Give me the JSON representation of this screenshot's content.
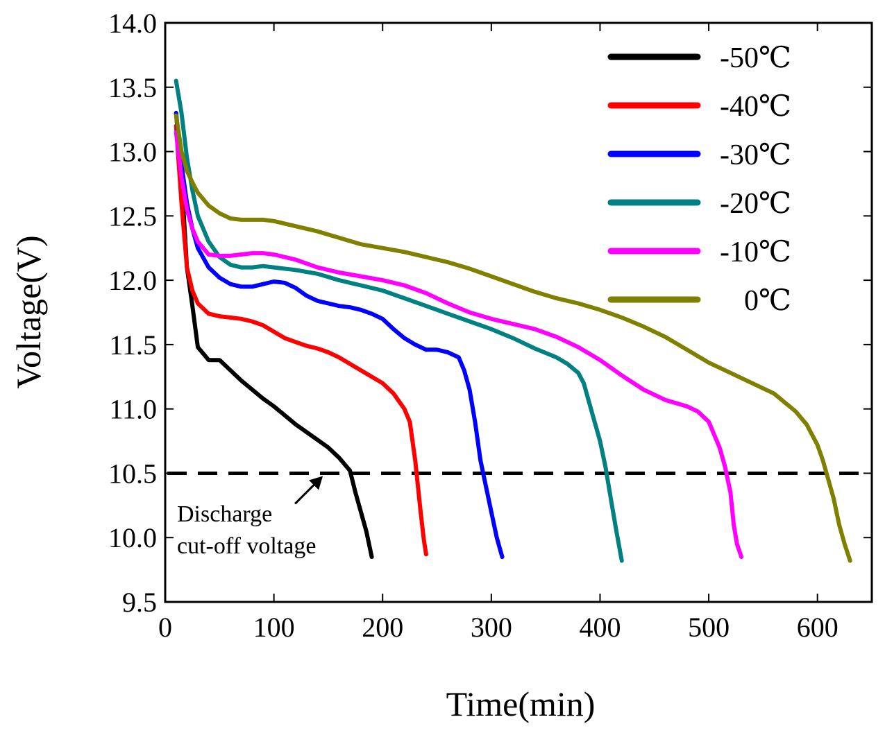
{
  "chart_data": {
    "type": "line",
    "title": "",
    "xlabel": "Time(min)",
    "ylabel": "Voltage(V)",
    "xlim": [
      0,
      650
    ],
    "ylim": [
      9.5,
      14.0
    ],
    "xticks": [
      "0",
      "100",
      "200",
      "300",
      "400",
      "500",
      "600"
    ],
    "yticks": [
      "9.5",
      "10.0",
      "10.5",
      "11.0",
      "11.5",
      "12.0",
      "12.5",
      "13.0",
      "13.5",
      "14.0"
    ],
    "legend_position": "top-right",
    "series": [
      {
        "name": "-50℃",
        "color": "#000000",
        "x": [
          10,
          15,
          20,
          25,
          30,
          40,
          50,
          60,
          70,
          80,
          90,
          100,
          110,
          120,
          130,
          140,
          150,
          160,
          170,
          175,
          180,
          185,
          190
        ],
        "y": [
          13.3,
          12.8,
          12.1,
          11.8,
          11.48,
          11.38,
          11.38,
          11.3,
          11.22,
          11.15,
          11.08,
          11.02,
          10.95,
          10.88,
          10.82,
          10.76,
          10.7,
          10.62,
          10.52,
          10.35,
          10.2,
          10.05,
          9.85
        ]
      },
      {
        "name": "-40℃",
        "color": "#ff0000",
        "x": [
          10,
          15,
          20,
          25,
          30,
          40,
          50,
          60,
          70,
          80,
          90,
          100,
          110,
          120,
          130,
          140,
          150,
          160,
          170,
          180,
          190,
          200,
          210,
          220,
          225,
          230,
          235,
          238,
          240
        ],
        "y": [
          13.2,
          12.6,
          12.1,
          11.92,
          11.82,
          11.74,
          11.72,
          11.71,
          11.7,
          11.68,
          11.65,
          11.6,
          11.55,
          11.52,
          11.49,
          11.47,
          11.44,
          11.4,
          11.35,
          11.3,
          11.25,
          11.2,
          11.12,
          11.0,
          10.9,
          10.6,
          10.2,
          9.98,
          9.87
        ]
      },
      {
        "name": "-30℃",
        "color": "#0000ff",
        "x": [
          10,
          15,
          20,
          25,
          30,
          40,
          50,
          60,
          70,
          80,
          90,
          100,
          110,
          120,
          130,
          140,
          150,
          160,
          170,
          180,
          190,
          200,
          210,
          220,
          230,
          240,
          250,
          260,
          270,
          275,
          280,
          285,
          290,
          295,
          300,
          305,
          310
        ],
        "y": [
          13.3,
          12.9,
          12.6,
          12.4,
          12.25,
          12.1,
          12.02,
          11.97,
          11.95,
          11.95,
          11.97,
          11.99,
          11.98,
          11.94,
          11.88,
          11.84,
          11.82,
          11.8,
          11.79,
          11.77,
          11.74,
          11.7,
          11.62,
          11.55,
          11.5,
          11.46,
          11.46,
          11.44,
          11.4,
          11.3,
          11.15,
          10.9,
          10.6,
          10.4,
          10.2,
          10.0,
          9.85
        ]
      },
      {
        "name": "-20℃",
        "color": "#008080",
        "x": [
          10,
          15,
          20,
          25,
          30,
          40,
          50,
          60,
          70,
          80,
          90,
          100,
          120,
          140,
          160,
          180,
          200,
          220,
          240,
          260,
          280,
          300,
          320,
          340,
          360,
          370,
          380,
          385,
          390,
          395,
          400,
          405,
          410,
          415,
          420
        ],
        "y": [
          13.55,
          13.3,
          12.95,
          12.7,
          12.5,
          12.3,
          12.18,
          12.12,
          12.1,
          12.1,
          12.11,
          12.1,
          12.08,
          12.05,
          12.0,
          11.96,
          11.92,
          11.86,
          11.8,
          11.74,
          11.68,
          11.62,
          11.55,
          11.47,
          11.4,
          11.35,
          11.28,
          11.2,
          11.05,
          10.9,
          10.75,
          10.55,
          10.3,
          10.05,
          9.82
        ]
      },
      {
        "name": "-10℃",
        "color": "#ff00ff",
        "x": [
          10,
          15,
          20,
          25,
          30,
          40,
          50,
          60,
          70,
          80,
          90,
          100,
          120,
          140,
          160,
          180,
          200,
          220,
          240,
          260,
          280,
          300,
          320,
          340,
          360,
          380,
          400,
          420,
          440,
          460,
          480,
          490,
          500,
          505,
          510,
          515,
          520,
          523,
          526,
          530
        ],
        "y": [
          13.15,
          12.8,
          12.55,
          12.4,
          12.3,
          12.2,
          12.19,
          12.19,
          12.2,
          12.21,
          12.21,
          12.2,
          12.16,
          12.1,
          12.06,
          12.03,
          12.0,
          11.96,
          11.9,
          11.82,
          11.75,
          11.7,
          11.66,
          11.62,
          11.56,
          11.48,
          11.38,
          11.26,
          11.15,
          11.07,
          11.02,
          10.98,
          10.9,
          10.8,
          10.7,
          10.55,
          10.35,
          10.1,
          9.95,
          9.85
        ]
      },
      {
        "name": "0℃",
        "color": "#808000",
        "x": [
          10,
          15,
          20,
          25,
          30,
          40,
          50,
          60,
          70,
          80,
          90,
          100,
          120,
          140,
          160,
          180,
          200,
          220,
          240,
          260,
          280,
          300,
          320,
          340,
          360,
          380,
          400,
          420,
          440,
          460,
          480,
          500,
          520,
          540,
          560,
          570,
          580,
          590,
          600,
          605,
          610,
          615,
          620,
          625,
          630
        ],
        "y": [
          13.28,
          13.0,
          12.85,
          12.76,
          12.68,
          12.58,
          12.52,
          12.48,
          12.47,
          12.47,
          12.47,
          12.46,
          12.42,
          12.38,
          12.33,
          12.28,
          12.25,
          12.22,
          12.18,
          12.14,
          12.09,
          12.03,
          11.97,
          11.91,
          11.86,
          11.82,
          11.77,
          11.71,
          11.64,
          11.56,
          11.46,
          11.36,
          11.28,
          11.2,
          11.12,
          11.05,
          10.98,
          10.88,
          10.72,
          10.6,
          10.45,
          10.3,
          10.1,
          9.95,
          9.82
        ]
      }
    ],
    "cutoff_line": {
      "y": 10.5,
      "label": "10.5"
    },
    "annotation": {
      "lines": [
        "Discharge",
        "cut-off voltage"
      ],
      "arrow_target_x": 145,
      "arrow_target_y": 10.5
    }
  }
}
